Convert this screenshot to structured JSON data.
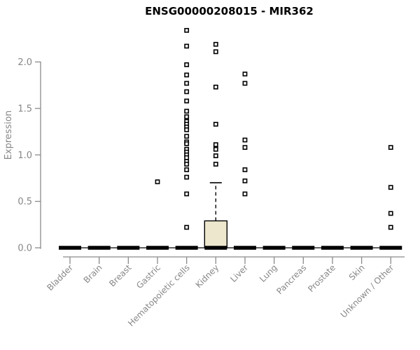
{
  "chart_data": {
    "type": "boxplot",
    "title": "ENSG00000208015 - MIR362",
    "ylabel": "Expression",
    "xlabel": "",
    "yticks": [
      "0.0",
      "0.5",
      "1.0",
      "1.5",
      "2.0"
    ],
    "ylim": [
      0,
      2.4
    ],
    "grid": false,
    "zero_line": true,
    "categories": [
      "Bladder",
      "Brain",
      "Breast",
      "Gastric",
      "Hematopoietic cells",
      "Kidney",
      "Liver",
      "Lung",
      "Pancreas",
      "Prostate",
      "Skin",
      "Unknown / Other"
    ],
    "boxes": [
      {
        "category": "Bladder",
        "median": 0,
        "q1": 0,
        "q3": 0,
        "whisker_low": 0,
        "whisker_high": 0,
        "outliers": []
      },
      {
        "category": "Brain",
        "median": 0,
        "q1": 0,
        "q3": 0,
        "whisker_low": 0,
        "whisker_high": 0,
        "outliers": []
      },
      {
        "category": "Breast",
        "median": 0,
        "q1": 0,
        "q3": 0,
        "whisker_low": 0,
        "whisker_high": 0,
        "outliers": []
      },
      {
        "category": "Gastric",
        "median": 0,
        "q1": 0,
        "q3": 0,
        "whisker_low": 0,
        "whisker_high": 0,
        "outliers": [
          0.71
        ]
      },
      {
        "category": "Hematopoietic cells",
        "median": 0,
        "q1": 0,
        "q3": 0,
        "whisker_low": 0,
        "whisker_high": 0,
        "outliers": [
          2.34,
          2.17,
          1.97,
          1.86,
          1.77,
          1.68,
          1.58,
          1.47,
          1.41,
          1.36,
          1.33,
          1.3,
          1.27,
          1.2,
          1.14,
          1.12,
          1.06,
          1.03,
          1.0,
          0.97,
          0.93,
          0.9,
          0.84,
          0.76,
          0.58,
          0.22
        ]
      },
      {
        "category": "Kidney",
        "median": 0,
        "q1": 0,
        "q3": 0.29,
        "whisker_low": 0,
        "whisker_high": 0.7,
        "outliers": [
          2.19,
          2.11,
          1.73,
          1.33,
          1.11,
          1.06,
          0.99,
          0.9
        ]
      },
      {
        "category": "Liver",
        "median": 0,
        "q1": 0,
        "q3": 0,
        "whisker_low": 0,
        "whisker_high": 0,
        "outliers": [
          1.87,
          1.77,
          1.16,
          1.08,
          0.84,
          0.72,
          0.58
        ]
      },
      {
        "category": "Lung",
        "median": 0,
        "q1": 0,
        "q3": 0,
        "whisker_low": 0,
        "whisker_high": 0,
        "outliers": []
      },
      {
        "category": "Pancreas",
        "median": 0,
        "q1": 0,
        "q3": 0,
        "whisker_low": 0,
        "whisker_high": 0,
        "outliers": []
      },
      {
        "category": "Prostate",
        "median": 0,
        "q1": 0,
        "q3": 0,
        "whisker_low": 0,
        "whisker_high": 0,
        "outliers": []
      },
      {
        "category": "Skin",
        "median": 0,
        "q1": 0,
        "q3": 0,
        "whisker_low": 0,
        "whisker_high": 0,
        "outliers": []
      },
      {
        "category": "Unknown / Other",
        "median": 0,
        "q1": 0,
        "q3": 0,
        "whisker_low": 0,
        "whisker_high": 0,
        "outliers": [
          1.08,
          0.65,
          0.37,
          0.22
        ]
      }
    ],
    "colors": {
      "box_fill": "#ece7cd",
      "box_border": "#000000",
      "bar": "#000000",
      "outlier": "#000000",
      "axis": "#8a8a8a",
      "tick_label": "#878787",
      "title": "#000000"
    }
  }
}
